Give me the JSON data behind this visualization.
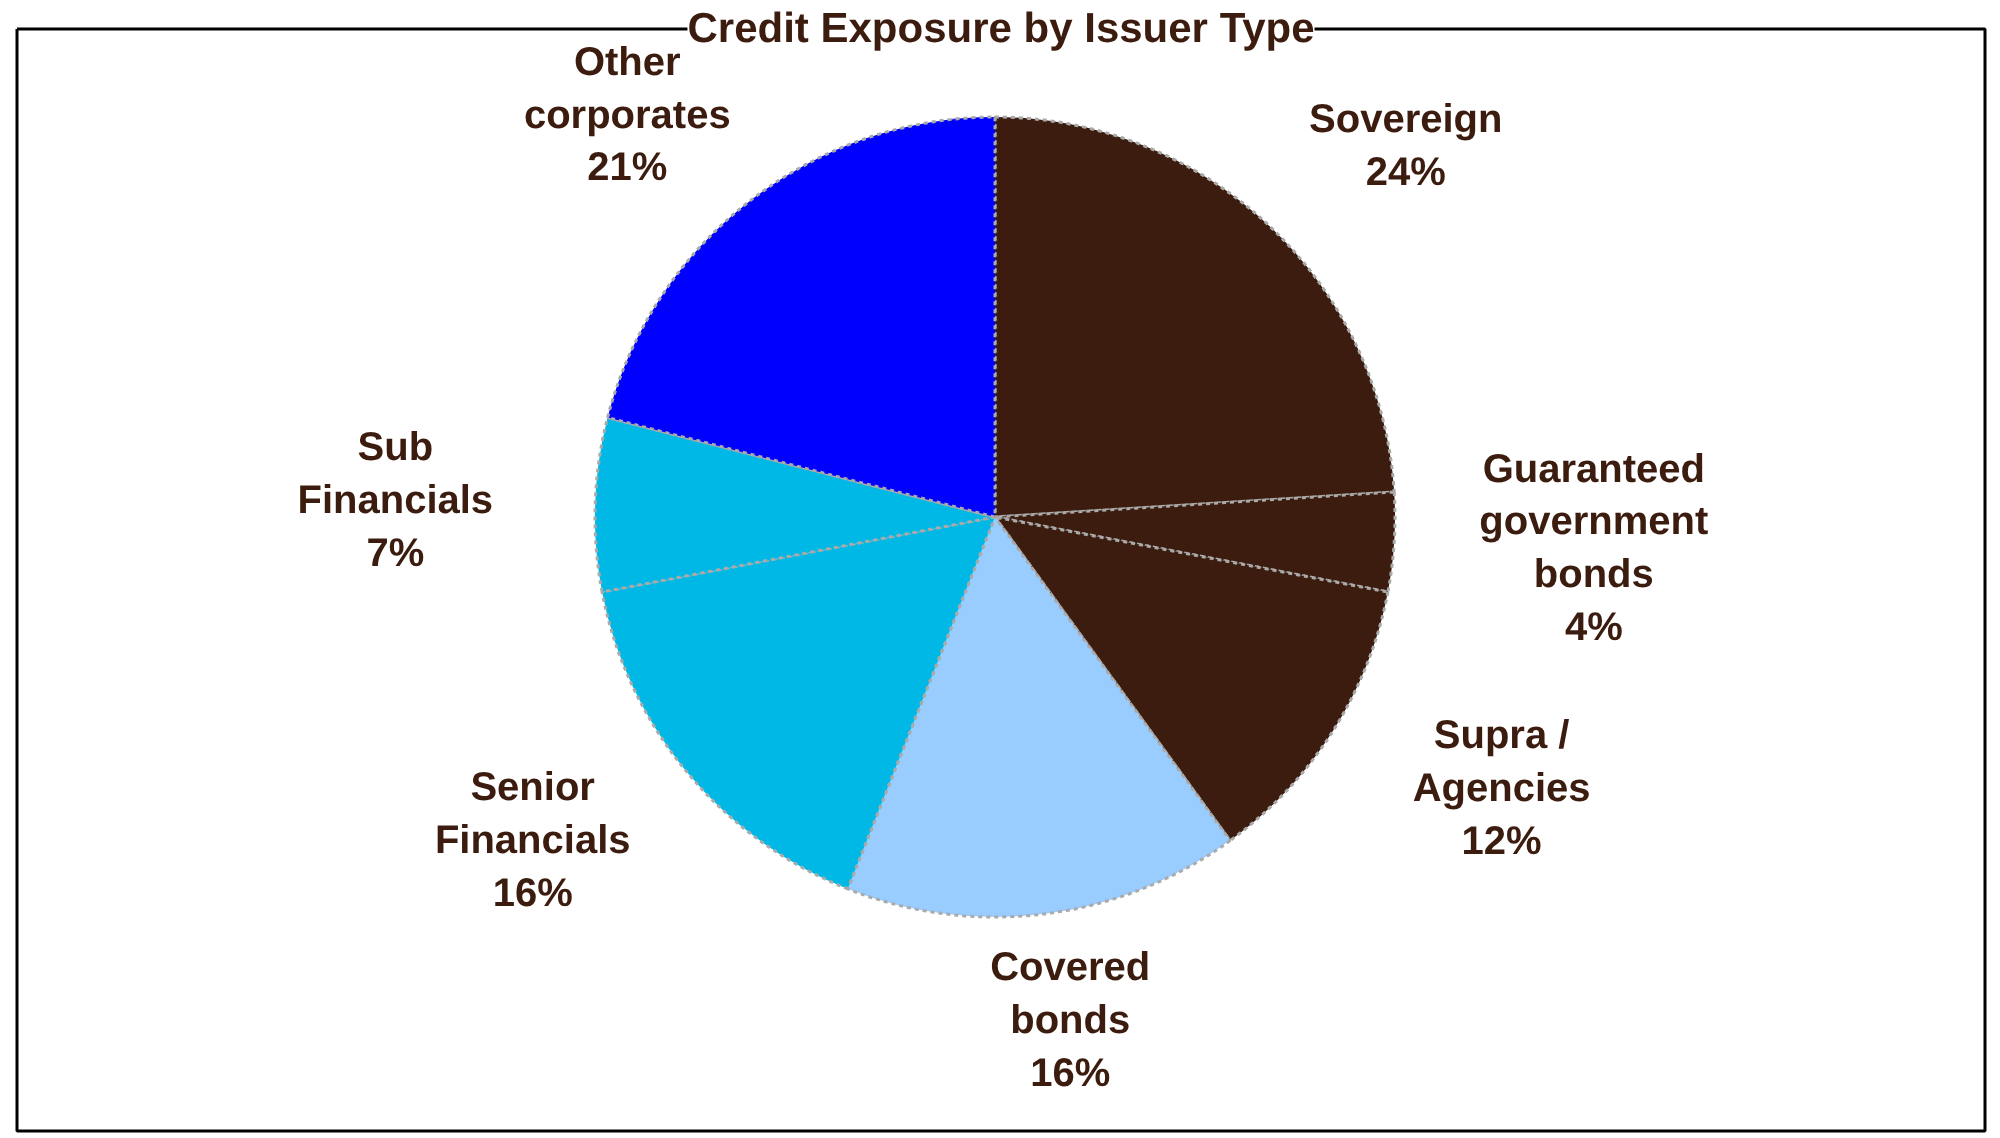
{
  "chart_data": {
    "type": "pie",
    "title": "Credit Exposure by Issuer Type",
    "categories": [
      "Sovereign",
      "Guaranteed government bonds",
      "Supra / Agencies",
      "Covered bonds",
      "Senior Financials",
      "Sub Financials",
      "Other corporates"
    ],
    "values": [
      24,
      4,
      12,
      16,
      16,
      7,
      21
    ],
    "value_labels": [
      "24%",
      "4%",
      "12%",
      "16%",
      "16%",
      "7%",
      "21%"
    ],
    "colors": [
      "#3b1c0e",
      "#3b1c0e",
      "#3b1c0e",
      "#99ccff",
      "#00b8e6",
      "#00b8e6",
      "#0000ff"
    ]
  }
}
